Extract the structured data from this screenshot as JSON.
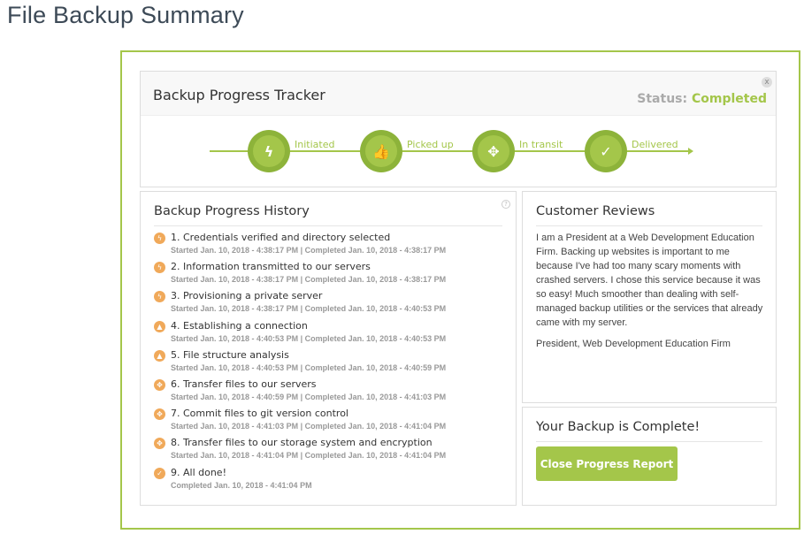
{
  "page_title": "File Backup Summary",
  "tracker": {
    "title": "Backup Progress Tracker",
    "status_label": "Status:",
    "status_value": "Completed",
    "close": "x",
    "steps": [
      {
        "label": "Initiated",
        "icon": "lightning-icon",
        "glyph": "ϟ"
      },
      {
        "label": "Picked up",
        "icon": "thumbs-up-icon",
        "glyph": "👍"
      },
      {
        "label": "In transit",
        "icon": "move-arrows-icon",
        "glyph": "✥"
      },
      {
        "label": "Delivered",
        "icon": "check-icon",
        "glyph": "✓"
      }
    ]
  },
  "history": {
    "title": "Backup Progress History",
    "help": "?",
    "items": [
      {
        "title": "1. Credentials verified and directory selected",
        "sub": "Started Jan. 10, 2018 - 4:38:17 PM | Completed Jan. 10, 2018 - 4:38:17 PM",
        "icon": "lightning-icon",
        "glyph": "ϟ"
      },
      {
        "title": "2. Information transmitted to our servers",
        "sub": "Started Jan. 10, 2018 - 4:38:17 PM | Completed Jan. 10, 2018 - 4:38:17 PM",
        "icon": "lightning-icon",
        "glyph": "ϟ"
      },
      {
        "title": "3. Provisioning a private server",
        "sub": "Started Jan. 10, 2018 - 4:38:17 PM | Completed Jan. 10, 2018 - 4:40:53 PM",
        "icon": "lightning-icon",
        "glyph": "ϟ"
      },
      {
        "title": "4. Establishing a connection",
        "sub": "Started Jan. 10, 2018 - 4:40:53 PM | Completed Jan. 10, 2018 - 4:40:53 PM",
        "icon": "thumbs-up-icon",
        "glyph": "▲"
      },
      {
        "title": "5. File structure analysis",
        "sub": "Started Jan. 10, 2018 - 4:40:53 PM | Completed Jan. 10, 2018 - 4:40:59 PM",
        "icon": "thumbs-up-icon",
        "glyph": "▲"
      },
      {
        "title": "6. Transfer files to our servers",
        "sub": "Started Jan. 10, 2018 - 4:40:59 PM | Completed Jan. 10, 2018 - 4:41:03 PM",
        "icon": "move-arrows-icon",
        "glyph": "✥"
      },
      {
        "title": "7. Commit files to git version control",
        "sub": "Started Jan. 10, 2018 - 4:41:03 PM | Completed Jan. 10, 2018 - 4:41:04 PM",
        "icon": "move-arrows-icon",
        "glyph": "✥"
      },
      {
        "title": "8. Transfer files to our storage system and encryption",
        "sub": "Started Jan. 10, 2018 - 4:41:04 PM | Completed Jan. 10, 2018 - 4:41:04 PM",
        "icon": "move-arrows-icon",
        "glyph": "✥"
      },
      {
        "title": "9. All done!",
        "sub": "Completed Jan. 10, 2018 - 4:41:04 PM",
        "icon": "check-icon",
        "glyph": "✓"
      }
    ]
  },
  "reviews": {
    "title": "Customer Reviews",
    "text": "I am a President at a Web Development Education Firm. Backing up websites is important to me because I've had too many scary moments with crashed servers. I chose this service because it was so easy! Much smoother than dealing with self-managed backup utilities or the services that already came with my server.",
    "author": "President, Web Development Education Firm"
  },
  "complete": {
    "title": "Your Backup is Complete!",
    "button": "Close Progress Report"
  },
  "colors": {
    "accent": "#a4c64a",
    "history_icon": "#f0a95a"
  }
}
